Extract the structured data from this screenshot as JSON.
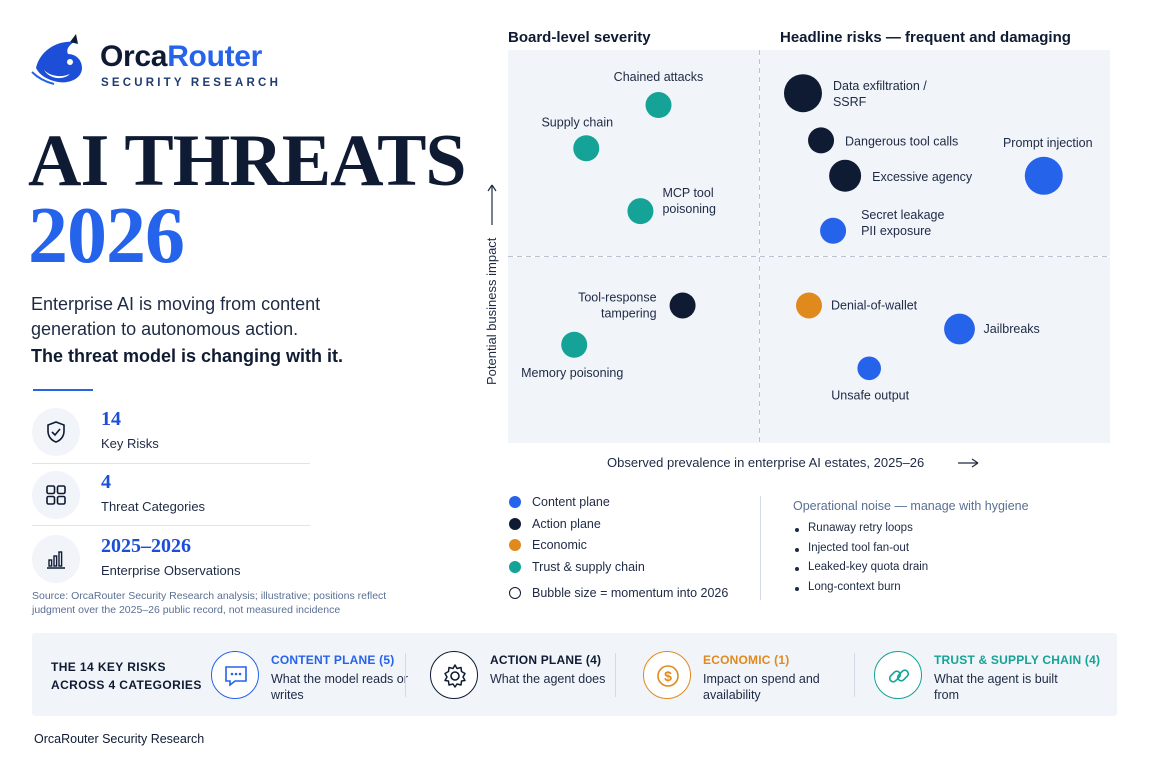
{
  "brand": {
    "name_part1": "Orca",
    "name_part2": "Router",
    "subtitle": "SECURITY RESEARCH",
    "logo_icon": "orca-logo-icon"
  },
  "hero": {
    "title": "AI THREATS",
    "year": "2026",
    "intro": "Enterprise AI is moving from content generation to autonomous action.",
    "intro_strong": "The threat model is changing with it."
  },
  "stats": [
    {
      "value": "14",
      "label": "Key Risks",
      "icon": "shield-check-icon"
    },
    {
      "value": "4",
      "label": "Threat Categories",
      "icon": "grid-icon"
    },
    {
      "value": "2025–2026",
      "label": "Enterprise Observations",
      "icon": "bar-chart-icon"
    }
  ],
  "source_note": "Source: OrcaRouter Security Research analysis; illustrative; positions reflect judgment over the 2025–26 public record, not measured incidence",
  "colors": {
    "content": "#2563eb",
    "action": "#0f1b33",
    "economic": "#e08a1e",
    "trust": "#14a396",
    "accent": "#2563eb",
    "panel": "#f1f4f9"
  },
  "chart_data": {
    "type": "scatter",
    "title": "",
    "xlabel": "Observed prevalence in enterprise AI estates, 2025–26",
    "ylabel": "Potential business impact",
    "xlim": [
      0,
      100
    ],
    "ylim": [
      0,
      100
    ],
    "quadrant_labels": {
      "top_left": "Board-level severity",
      "top_right": "Headline risks — frequent and damaging"
    },
    "points": [
      {
        "label": "Chained attacks",
        "category": "trust",
        "x": 25,
        "y": 86,
        "size": 2
      },
      {
        "label": "Supply chain",
        "category": "trust",
        "x": 13,
        "y": 75,
        "size": 2
      },
      {
        "label": "MCP tool poisoning",
        "category": "trust",
        "x": 22,
        "y": 59,
        "size": 2
      },
      {
        "label": "Tool-response tampering",
        "category": "action",
        "x": 29,
        "y": 35,
        "size": 2
      },
      {
        "label": "Memory poisoning",
        "category": "trust",
        "x": 11,
        "y": 25,
        "size": 2
      },
      {
        "label": "Data exfiltration / SSRF",
        "category": "action",
        "x": 49,
        "y": 89,
        "size": 3
      },
      {
        "label": "Dangerous tool calls",
        "category": "action",
        "x": 52,
        "y": 77,
        "size": 2
      },
      {
        "label": "Excessive agency",
        "category": "action",
        "x": 56,
        "y": 68,
        "size": 2.5
      },
      {
        "label": "Prompt injection",
        "category": "content",
        "x": 89,
        "y": 68,
        "size": 3
      },
      {
        "label": "Secret leakage PII exposure",
        "category": "content",
        "x": 54,
        "y": 54,
        "size": 2
      },
      {
        "label": "Denial-of-wallet",
        "category": "economic",
        "x": 50,
        "y": 35,
        "size": 2
      },
      {
        "label": "Jailbreaks",
        "category": "content",
        "x": 75,
        "y": 29,
        "size": 2.4
      },
      {
        "label": "Unsafe output",
        "category": "content",
        "x": 60,
        "y": 19,
        "size": 1.8
      }
    ]
  },
  "legend": {
    "items": [
      {
        "label": "Content plane",
        "color": "#2563eb"
      },
      {
        "label": "Action plane",
        "color": "#0f1b33"
      },
      {
        "label": "Economic",
        "color": "#e08a1e"
      },
      {
        "label": "Trust & supply chain",
        "color": "#14a396"
      }
    ],
    "bubble_note": "Bubble size = momentum into 2026"
  },
  "noise": {
    "title": "Operational noise — manage with hygiene",
    "items": [
      "Runaway retry loops",
      "Injected tool fan-out",
      "Leaked-key quota drain",
      "Long-context burn"
    ]
  },
  "band": {
    "label_line1": "THE 14 KEY RISKS",
    "label_line2": "ACROSS 4 CATEGORIES",
    "categories": [
      {
        "title": "CONTENT PLANE (5)",
        "desc": "What the model reads or writes",
        "color": "#2563eb",
        "icon": "chat-icon"
      },
      {
        "title": "ACTION PLANE (4)",
        "desc": "What the agent does",
        "color": "#0f1b33",
        "icon": "gear-icon"
      },
      {
        "title": "ECONOMIC (1)",
        "desc": "Impact on spend and availability",
        "color": "#e08a1e",
        "icon": "dollar-icon"
      },
      {
        "title": "TRUST & SUPPLY CHAIN (4)",
        "desc": "What the agent is built from",
        "color": "#14a396",
        "icon": "link-icon"
      }
    ]
  },
  "footer": "OrcaRouter Security Research"
}
